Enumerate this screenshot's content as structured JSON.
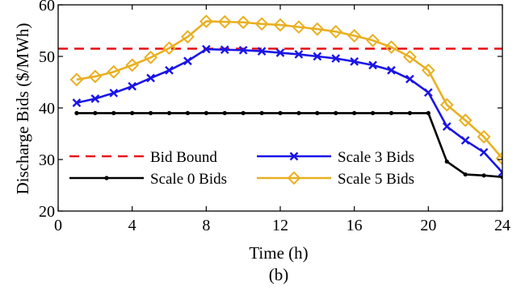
{
  "chart_data": {
    "type": "line",
    "xlabel": "Time (h)",
    "ylabel": "Discharge Bids ($/MWh)",
    "caption": "(b)",
    "xlim": [
      0,
      24
    ],
    "ylim": [
      20,
      60
    ],
    "xticks": [
      0,
      4,
      8,
      12,
      16,
      20,
      24
    ],
    "yticks": [
      20,
      30,
      40,
      50,
      60
    ],
    "grid": false,
    "legend_position": "bottom-left, two columns",
    "bid_bound": {
      "name": "Bid Bound",
      "value": 51.5,
      "color": "#e8161c",
      "style": "dashed"
    },
    "x": [
      1,
      2,
      3,
      4,
      5,
      6,
      7,
      8,
      9,
      10,
      11,
      12,
      13,
      14,
      15,
      16,
      17,
      18,
      19,
      20,
      21,
      22,
      23,
      24
    ],
    "series": [
      {
        "name": "Scale 0 Bids",
        "color": "#000000",
        "marker": "dot",
        "values": [
          39,
          39,
          39,
          39,
          39,
          39,
          39,
          39,
          39,
          39,
          39,
          39,
          39,
          39,
          39,
          39,
          39,
          39,
          39,
          39,
          29.6,
          27.1,
          26.9,
          26.6
        ]
      },
      {
        "name": "Scale 3 Bids",
        "color": "#1a14e6",
        "marker": "x",
        "values": [
          41,
          41.8,
          42.9,
          44.2,
          45.8,
          47.3,
          49.1,
          51.4,
          51.3,
          51.2,
          51,
          50.7,
          50.4,
          50,
          49.6,
          49,
          48.3,
          47.3,
          45.6,
          43,
          36.4,
          33.7,
          31.4,
          27.5
        ]
      },
      {
        "name": "Scale 5 Bids",
        "color": "#e8b020",
        "marker": "diamond",
        "values": [
          45.5,
          46.1,
          47,
          48.3,
          49.8,
          51.6,
          53.8,
          56.8,
          56.7,
          56.6,
          56.3,
          56.1,
          55.7,
          55.3,
          54.8,
          54,
          53.1,
          51.8,
          49.9,
          47.3,
          40.6,
          37.6,
          34.4,
          30.2
        ]
      }
    ]
  }
}
